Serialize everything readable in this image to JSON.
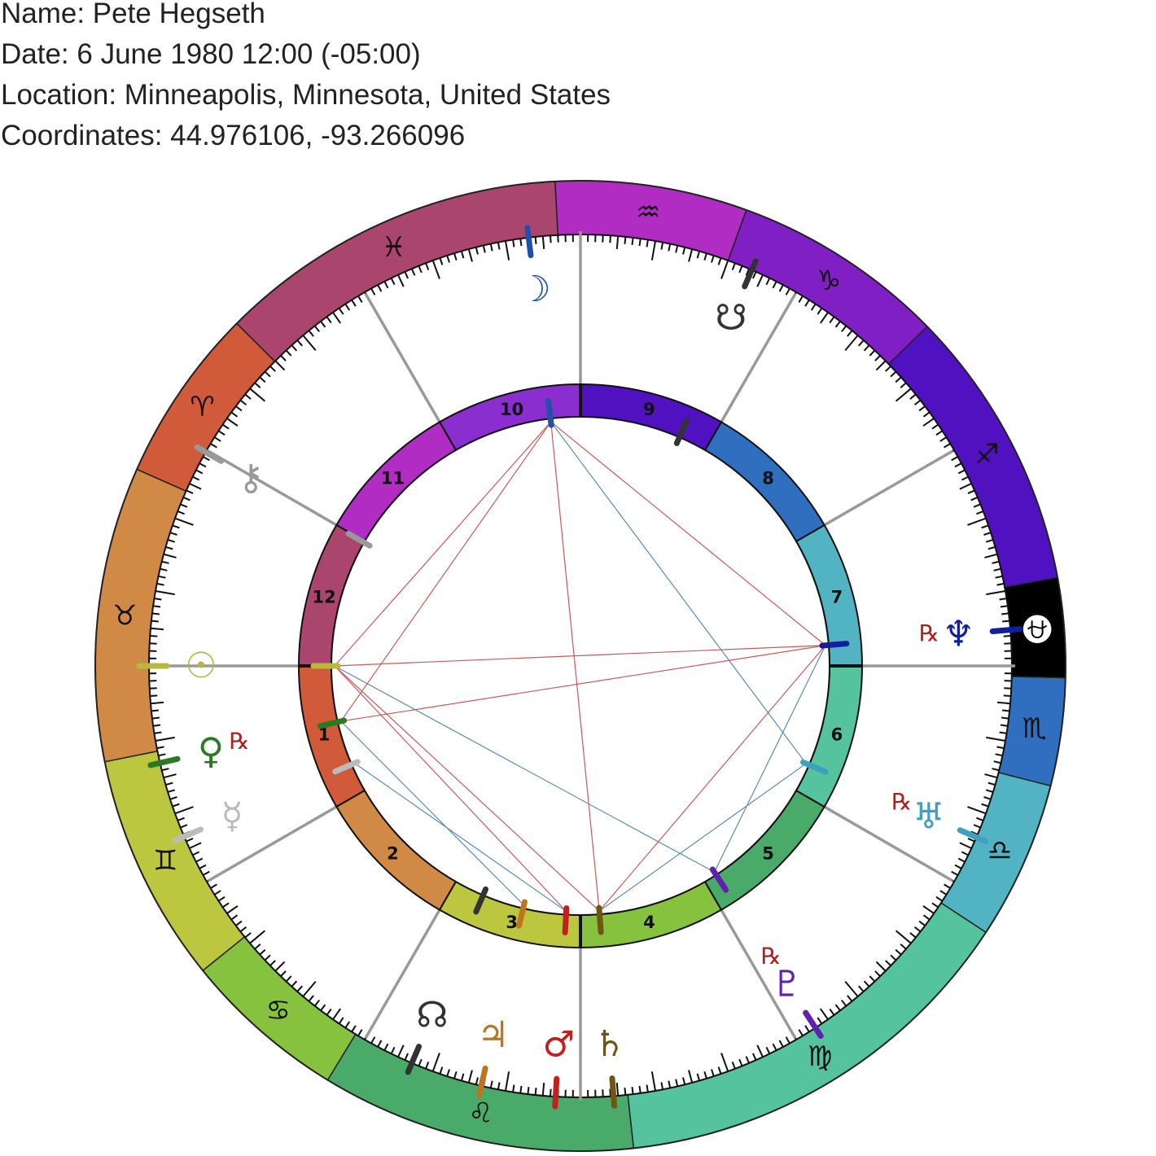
{
  "header": {
    "name": "Name: Pete Hegseth",
    "date": "Date: 6 June 1980 12:00 (-05:00)",
    "location": "Location: Minneapolis, Minnesota, United States",
    "coordinates": "Coordinates: 44.976106, -93.266096"
  },
  "wheel": {
    "signs": [
      {
        "name": "Aries",
        "glyph": "♈",
        "color": "#d05a3a",
        "start_deg": 315.1,
        "end_deg": 336.1
      },
      {
        "name": "Taurus",
        "glyph": "♉",
        "color": "#d08a45",
        "start_deg": 336.1,
        "end_deg": 371.4
      },
      {
        "name": "Gemini",
        "glyph": "♊",
        "color": "#bcc63e",
        "start_deg": 11.4,
        "end_deg": 38.9
      },
      {
        "name": "Cancer",
        "glyph": "♋",
        "color": "#86c23e",
        "start_deg": 38.9,
        "end_deg": 58.6
      },
      {
        "name": "Leo",
        "glyph": "♌",
        "color": "#4aaa6a",
        "start_deg": 58.6,
        "end_deg": 96.3
      },
      {
        "name": "Virgo",
        "glyph": "♍",
        "color": "#55c39e",
        "start_deg": 96.3,
        "end_deg": 146.7
      },
      {
        "name": "Libra",
        "glyph": "♎",
        "color": "#52b4c2",
        "start_deg": 146.7,
        "end_deg": 165.7
      },
      {
        "name": "Scorpio",
        "glyph": "♏",
        "color": "#306fc0",
        "start_deg": 165.7,
        "end_deg": 178.6
      },
      {
        "name": "Ophiuchus",
        "glyph": "⛎",
        "color": "#000000",
        "glyph_color": "#ffffff",
        "start_deg": 178.6,
        "end_deg": 190.5
      },
      {
        "name": "Sagittarius",
        "glyph": "♐",
        "color": "#5012c0",
        "start_deg": 190.5,
        "end_deg": 224.4
      },
      {
        "name": "Capricorn",
        "glyph": "♑",
        "color": "#8020c4",
        "start_deg": 224.4,
        "end_deg": 250.0
      },
      {
        "name": "Aquarius",
        "glyph": "♒",
        "color": "#b02cc2",
        "start_deg": 250.0,
        "end_deg": 273.0
      },
      {
        "name": "Pisces",
        "glyph": "♓",
        "color": "#aa466e",
        "start_deg": 273.0,
        "end_deg": 315.1
      }
    ],
    "houses": [
      {
        "number": "1",
        "color": "#d05a3a"
      },
      {
        "number": "2",
        "color": "#d08a45"
      },
      {
        "number": "3",
        "color": "#bcc63e"
      },
      {
        "number": "4",
        "color": "#86c23e"
      },
      {
        "number": "5",
        "color": "#4aaa6a"
      },
      {
        "number": "6",
        "color": "#55c39e"
      },
      {
        "number": "7",
        "color": "#52b4c2"
      },
      {
        "number": "8",
        "color": "#306fc0"
      },
      {
        "number": "9",
        "color": "#5012c0"
      },
      {
        "number": "10",
        "color": "#8a2ed0"
      },
      {
        "number": "11",
        "color": "#b02cc2"
      },
      {
        "number": "12",
        "color": "#aa466e"
      }
    ],
    "planets": [
      {
        "name": "Sun",
        "glyph": "☉",
        "color": "#b8b83c",
        "deg": 0.0,
        "retrograde": false
      },
      {
        "name": "Venus",
        "glyph": "♀",
        "color": "#2a7a22",
        "deg": 13.0,
        "retrograde": true
      },
      {
        "name": "Mercury",
        "glyph": "☿",
        "color": "#bbbbbb",
        "deg": 23.3,
        "retrograde": false
      },
      {
        "name": "North Node",
        "glyph": "☊",
        "color": "#333333",
        "deg": 67.0,
        "retrograde": false
      },
      {
        "name": "Jupiter",
        "glyph": "♃",
        "color": "#c07420",
        "deg": 76.7,
        "retrograde": false
      },
      {
        "name": "Mars",
        "glyph": "♂",
        "color": "#c02020",
        "deg": 86.7,
        "retrograde": false
      },
      {
        "name": "Saturn",
        "glyph": "♄",
        "color": "#705412",
        "deg": 94.4,
        "retrograde": false
      },
      {
        "name": "Pluto",
        "glyph": "♇",
        "color": "#6020b0",
        "deg": 123.0,
        "retrograde": true
      },
      {
        "name": "Uranus",
        "glyph": "♅",
        "color": "#40a0c0",
        "deg": 156.6,
        "retrograde": true
      },
      {
        "name": "Neptune",
        "glyph": "♆",
        "color": "#10209a",
        "deg": 184.8,
        "retrograde": true
      },
      {
        "name": "South Node",
        "glyph": "☋",
        "color": "#333333",
        "deg": 246.6,
        "retrograde": false
      },
      {
        "name": "Moon",
        "glyph": "☽",
        "color": "#2050a8",
        "deg": 276.9,
        "retrograde": false
      },
      {
        "name": "Chiron",
        "glyph": "⚷",
        "color": "#999999",
        "deg": 330.3,
        "retrograde": false
      }
    ],
    "retrograde_label": "℞",
    "retrograde_color": "#b02020",
    "aspects": [
      {
        "from": "Moon",
        "to": "Sun",
        "color": "#c85a5a"
      },
      {
        "from": "Moon",
        "to": "Venus",
        "color": "#c85a5a"
      },
      {
        "from": "Moon",
        "to": "Saturn",
        "color": "#c85a5a"
      },
      {
        "from": "Moon",
        "to": "Neptune",
        "color": "#c85a5a"
      },
      {
        "from": "Moon",
        "to": "Uranus",
        "color": "#5a8ab8"
      },
      {
        "from": "Sun",
        "to": "Neptune",
        "color": "#c85a5a"
      },
      {
        "from": "Venus",
        "to": "Neptune",
        "color": "#c85a5a"
      },
      {
        "from": "Sun",
        "to": "Mars",
        "color": "#c85a5a"
      },
      {
        "from": "Sun",
        "to": "Saturn",
        "color": "#c85a5a"
      },
      {
        "from": "Sun",
        "to": "Pluto",
        "color": "#5a8ab8"
      },
      {
        "from": "Venus",
        "to": "Jupiter",
        "color": "#5a8ab8"
      },
      {
        "from": "Mercury",
        "to": "Mars",
        "color": "#5a8ab8"
      },
      {
        "from": "Neptune",
        "to": "Saturn",
        "color": "#c85a5a"
      },
      {
        "from": "Neptune",
        "to": "Pluto",
        "color": "#5a8ab8"
      },
      {
        "from": "Uranus",
        "to": "Saturn",
        "color": "#5a8ab8"
      }
    ]
  }
}
